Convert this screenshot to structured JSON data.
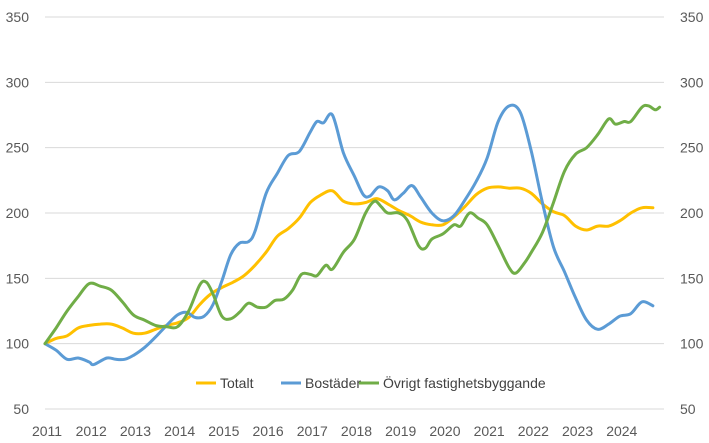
{
  "chart_data": {
    "type": "line",
    "title": "",
    "xlabel": "",
    "ylabel": "",
    "ylim": [
      50,
      350
    ],
    "yticks": [
      50,
      100,
      150,
      200,
      250,
      300,
      350
    ],
    "xlim": [
      2011,
      2025
    ],
    "xticks": [
      2011,
      2012,
      2013,
      2014,
      2015,
      2016,
      2017,
      2018,
      2019,
      2020,
      2021,
      2022,
      2023,
      2024
    ],
    "grid": "horizontal",
    "secondary_axis": "right-mirror",
    "legend_position": "bottom-inside",
    "series": [
      {
        "name": "Totalt",
        "color": "#FFC000",
        "points": [
          [
            2011.0,
            100
          ],
          [
            2011.25,
            104
          ],
          [
            2011.5,
            106
          ],
          [
            2011.75,
            112
          ],
          [
            2012.0,
            114
          ],
          [
            2012.25,
            115
          ],
          [
            2012.5,
            115
          ],
          [
            2012.75,
            112
          ],
          [
            2013.0,
            108
          ],
          [
            2013.25,
            108
          ],
          [
            2013.5,
            111
          ],
          [
            2013.75,
            114
          ],
          [
            2014.0,
            116
          ],
          [
            2014.25,
            120
          ],
          [
            2014.5,
            130
          ],
          [
            2014.75,
            138
          ],
          [
            2015.0,
            143
          ],
          [
            2015.25,
            147
          ],
          [
            2015.5,
            152
          ],
          [
            2015.75,
            160
          ],
          [
            2016.0,
            170
          ],
          [
            2016.25,
            182
          ],
          [
            2016.5,
            188
          ],
          [
            2016.75,
            196
          ],
          [
            2017.0,
            208
          ],
          [
            2017.25,
            214
          ],
          [
            2017.5,
            217
          ],
          [
            2017.75,
            209
          ],
          [
            2018.0,
            207
          ],
          [
            2018.25,
            208
          ],
          [
            2018.5,
            211
          ],
          [
            2018.75,
            207
          ],
          [
            2019.0,
            202
          ],
          [
            2019.25,
            198
          ],
          [
            2019.5,
            193
          ],
          [
            2019.75,
            191
          ],
          [
            2020.0,
            191
          ],
          [
            2020.25,
            197
          ],
          [
            2020.5,
            205
          ],
          [
            2020.75,
            214
          ],
          [
            2021.0,
            219
          ],
          [
            2021.25,
            220
          ],
          [
            2021.5,
            219
          ],
          [
            2021.75,
            219
          ],
          [
            2022.0,
            215
          ],
          [
            2022.25,
            207
          ],
          [
            2022.5,
            201
          ],
          [
            2022.75,
            198
          ],
          [
            2023.0,
            190
          ],
          [
            2023.25,
            187
          ],
          [
            2023.5,
            190
          ],
          [
            2023.75,
            190
          ],
          [
            2024.0,
            194
          ],
          [
            2024.25,
            200
          ],
          [
            2024.5,
            204
          ],
          [
            2024.75,
            204
          ]
        ]
      },
      {
        "name": "Bostäder",
        "color": "#5B9BD5",
        "points": [
          [
            2011.0,
            100
          ],
          [
            2011.25,
            95
          ],
          [
            2011.5,
            88
          ],
          [
            2011.75,
            89
          ],
          [
            2012.0,
            86
          ],
          [
            2012.1,
            84
          ],
          [
            2012.4,
            89
          ],
          [
            2012.6,
            88
          ],
          [
            2012.8,
            88
          ],
          [
            2013.0,
            91
          ],
          [
            2013.25,
            97
          ],
          [
            2013.5,
            105
          ],
          [
            2013.75,
            114
          ],
          [
            2014.0,
            122
          ],
          [
            2014.2,
            124
          ],
          [
            2014.4,
            120
          ],
          [
            2014.6,
            121
          ],
          [
            2014.8,
            130
          ],
          [
            2015.0,
            148
          ],
          [
            2015.2,
            168
          ],
          [
            2015.4,
            177
          ],
          [
            2015.6,
            178
          ],
          [
            2015.75,
            186
          ],
          [
            2016.0,
            215
          ],
          [
            2016.25,
            230
          ],
          [
            2016.5,
            244
          ],
          [
            2016.75,
            247
          ],
          [
            2017.0,
            262
          ],
          [
            2017.15,
            270
          ],
          [
            2017.3,
            269
          ],
          [
            2017.5,
            275
          ],
          [
            2017.75,
            246
          ],
          [
            2018.0,
            228
          ],
          [
            2018.2,
            214
          ],
          [
            2018.35,
            213
          ],
          [
            2018.55,
            220
          ],
          [
            2018.75,
            217
          ],
          [
            2018.9,
            210
          ],
          [
            2019.1,
            215
          ],
          [
            2019.3,
            221
          ],
          [
            2019.5,
            212
          ],
          [
            2019.75,
            200
          ],
          [
            2020.0,
            194
          ],
          [
            2020.25,
            198
          ],
          [
            2020.5,
            210
          ],
          [
            2020.75,
            224
          ],
          [
            2021.0,
            242
          ],
          [
            2021.25,
            270
          ],
          [
            2021.5,
            282
          ],
          [
            2021.75,
            277
          ],
          [
            2022.0,
            247
          ],
          [
            2022.25,
            208
          ],
          [
            2022.5,
            174
          ],
          [
            2022.75,
            155
          ],
          [
            2023.0,
            135
          ],
          [
            2023.25,
            118
          ],
          [
            2023.5,
            111
          ],
          [
            2023.75,
            115
          ],
          [
            2024.0,
            121
          ],
          [
            2024.25,
            123
          ],
          [
            2024.5,
            132
          ],
          [
            2024.75,
            129
          ]
        ]
      },
      {
        "name": "Övrigt fastighetsbyggande",
        "color": "#70AD47",
        "points": [
          [
            2011.0,
            100
          ],
          [
            2011.25,
            112
          ],
          [
            2011.5,
            125
          ],
          [
            2011.75,
            136
          ],
          [
            2012.0,
            146
          ],
          [
            2012.25,
            144
          ],
          [
            2012.5,
            141
          ],
          [
            2012.75,
            132
          ],
          [
            2013.0,
            122
          ],
          [
            2013.25,
            118
          ],
          [
            2013.5,
            114
          ],
          [
            2013.75,
            113
          ],
          [
            2014.0,
            113
          ],
          [
            2014.25,
            125
          ],
          [
            2014.5,
            145
          ],
          [
            2014.65,
            147
          ],
          [
            2014.8,
            138
          ],
          [
            2015.0,
            121
          ],
          [
            2015.2,
            119
          ],
          [
            2015.4,
            124
          ],
          [
            2015.6,
            131
          ],
          [
            2015.8,
            128
          ],
          [
            2016.0,
            128
          ],
          [
            2016.2,
            133
          ],
          [
            2016.4,
            134
          ],
          [
            2016.6,
            141
          ],
          [
            2016.8,
            153
          ],
          [
            2017.0,
            153
          ],
          [
            2017.15,
            152
          ],
          [
            2017.35,
            160
          ],
          [
            2017.5,
            157
          ],
          [
            2017.75,
            170
          ],
          [
            2018.0,
            180
          ],
          [
            2018.25,
            200
          ],
          [
            2018.45,
            209
          ],
          [
            2018.6,
            205
          ],
          [
            2018.75,
            200
          ],
          [
            2019.0,
            200
          ],
          [
            2019.2,
            194
          ],
          [
            2019.45,
            175
          ],
          [
            2019.6,
            173
          ],
          [
            2019.75,
            180
          ],
          [
            2020.0,
            184
          ],
          [
            2020.25,
            191
          ],
          [
            2020.4,
            190
          ],
          [
            2020.6,
            200
          ],
          [
            2020.8,
            196
          ],
          [
            2021.0,
            191
          ],
          [
            2021.25,
            175
          ],
          [
            2021.5,
            158
          ],
          [
            2021.65,
            154
          ],
          [
            2021.85,
            162
          ],
          [
            2022.0,
            170
          ],
          [
            2022.25,
            185
          ],
          [
            2022.5,
            208
          ],
          [
            2022.75,
            232
          ],
          [
            2023.0,
            245
          ],
          [
            2023.25,
            250
          ],
          [
            2023.5,
            260
          ],
          [
            2023.75,
            272
          ],
          [
            2023.9,
            268
          ],
          [
            2024.1,
            270
          ],
          [
            2024.25,
            270
          ],
          [
            2024.5,
            281
          ],
          [
            2024.65,
            282
          ],
          [
            2024.8,
            279
          ],
          [
            2024.9,
            281
          ]
        ]
      }
    ]
  }
}
